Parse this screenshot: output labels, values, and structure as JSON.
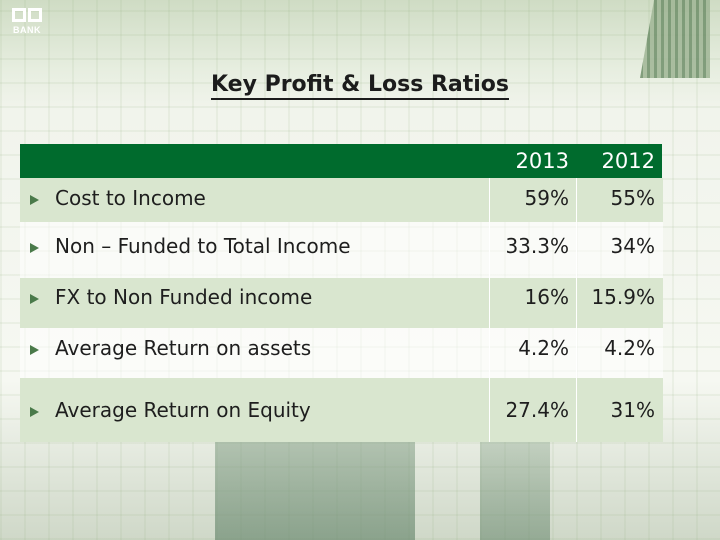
{
  "logo": {
    "text": "BANK"
  },
  "title": "Key Profit & Loss Ratios",
  "table": {
    "years": [
      "2013",
      "2012"
    ],
    "rows": [
      {
        "label": "Cost to Income",
        "v2013": "59%",
        "v2012": "55%"
      },
      {
        "label": "Non – Funded to Total Income",
        "v2013": "33.3%",
        "v2012": "34%"
      },
      {
        "label": "FX to Non  Funded income",
        "v2013": "16%",
        "v2012": "15.9%"
      },
      {
        "label": "Average Return on assets",
        "v2013": "4.2%",
        "v2012": "4.2%"
      },
      {
        "label": "Average Return on Equity",
        "v2013": "27.4%",
        "v2012": "31%"
      }
    ]
  },
  "colors": {
    "header": "#006b2d",
    "row_alt": "#d9e6cf",
    "bullet": "#4a7a4a"
  }
}
